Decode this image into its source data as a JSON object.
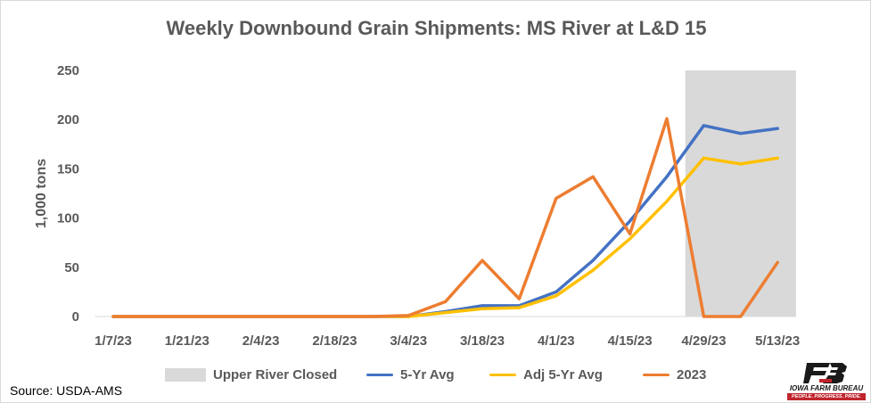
{
  "chart_data": {
    "type": "line",
    "title": "Weekly Downbound Grain Shipments: MS River at L&D 15",
    "xlabel": "",
    "ylabel": "1,000 tons",
    "ylim": [
      0,
      250
    ],
    "yticks": [
      0,
      50,
      100,
      150,
      200,
      250
    ],
    "x": [
      "1/7/23",
      "1/14/23",
      "1/21/23",
      "1/28/23",
      "2/4/23",
      "2/11/23",
      "2/18/23",
      "2/25/23",
      "3/4/23",
      "3/11/23",
      "3/18/23",
      "3/25/23",
      "4/1/23",
      "4/8/23",
      "4/15/23",
      "4/22/23",
      "4/29/23",
      "5/6/23",
      "5/13/23"
    ],
    "x_tick_labels": [
      "1/7/23",
      "1/21/23",
      "2/4/23",
      "2/18/23",
      "3/4/23",
      "3/18/23",
      "4/1/23",
      "4/15/23",
      "4/29/23",
      "5/13/23"
    ],
    "shaded_region": {
      "name": "Upper River Closed",
      "from": "4/29/23",
      "to": "5/13/23",
      "color": "#d9d9d9"
    },
    "grid": false,
    "legend_position": "bottom",
    "series": [
      {
        "name": "5-Yr Avg",
        "color": "#4472c4",
        "values": [
          0,
          0,
          0,
          0,
          0,
          0,
          0,
          0,
          0,
          5,
          11,
          11,
          25,
          57,
          97,
          142,
          194,
          186,
          191
        ]
      },
      {
        "name": "Adj 5-Yr Avg",
        "color": "#ffc000",
        "values": [
          0,
          0,
          0,
          0,
          0,
          0,
          0,
          0,
          0,
          4,
          8,
          9,
          21,
          47,
          79,
          117,
          161,
          155,
          161
        ]
      },
      {
        "name": "2023",
        "color": "#ed7d31",
        "values": [
          0,
          0,
          0,
          0,
          0,
          0,
          0,
          0,
          1,
          15,
          57,
          18,
          120,
          142,
          84,
          201,
          0,
          0,
          55
        ]
      }
    ]
  },
  "footer": {
    "source": "Source: USDA-AMS",
    "logo_name": "IOWA FARM BUREAU",
    "logo_tagline": "PEOPLE. PROGRESS. PRIDE.",
    "brand_color": "#c0252d"
  }
}
